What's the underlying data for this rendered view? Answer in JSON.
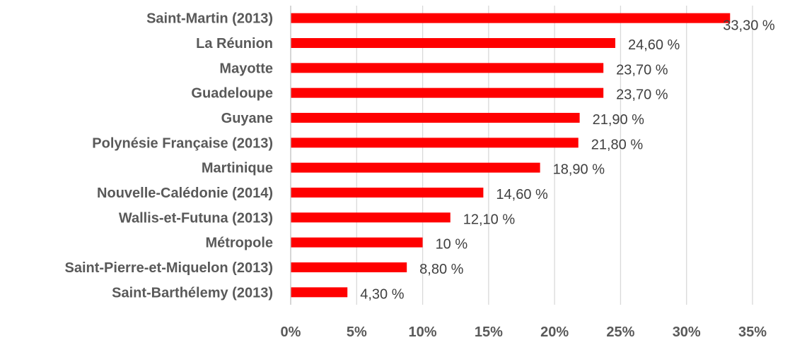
{
  "chart_data": {
    "type": "bar",
    "orientation": "horizontal",
    "categories": [
      "Saint-Martin (2013)",
      "La Réunion",
      "Mayotte",
      "Guadeloupe",
      "Guyane",
      "Polynésie Française (2013)",
      "Martinique",
      "Nouvelle-Calédonie (2014)",
      "Wallis-et-Futuna (2013)",
      "Métropole",
      "Saint-Pierre-et-Miquelon (2013)",
      "Saint-Barthélemy (2013)"
    ],
    "values": [
      33.3,
      24.6,
      23.7,
      23.7,
      21.9,
      21.8,
      18.9,
      14.6,
      12.1,
      10,
      8.8,
      4.3
    ],
    "value_labels": [
      "33,30 %",
      "24,60 %",
      "23,70 %",
      "23,70 %",
      "21,90 %",
      "21,80 %",
      "18,90 %",
      "14,60 %",
      "12,10 %",
      "10 %",
      "8,80 %",
      "4,30 %"
    ],
    "xlim": [
      0,
      35
    ],
    "xticks": [
      0,
      5,
      10,
      15,
      20,
      25,
      30,
      35
    ],
    "xtick_labels": [
      "0%",
      "5%",
      "10%",
      "15%",
      "20%",
      "25%",
      "30%",
      "35%"
    ],
    "grid": true,
    "legend": false,
    "bar_color": "#ff0000"
  }
}
